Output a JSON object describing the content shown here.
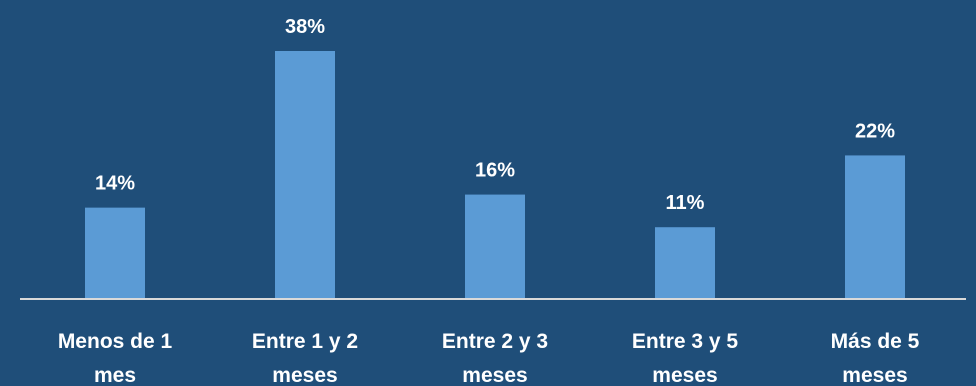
{
  "chart_data": {
    "type": "bar",
    "categories": [
      "Menos de 1 mes",
      "Entre 1 y 2 meses",
      "Entre 2 y 3 meses",
      "Entre 3 y 5 meses",
      "Más de 5 meses"
    ],
    "category_label_lines": [
      [
        "Menos de 1",
        "mes"
      ],
      [
        "Entre 1 y 2",
        "meses"
      ],
      [
        "Entre 2 y 3",
        "meses"
      ],
      [
        "Entre 3 y 5",
        "meses"
      ],
      [
        "Más de 5",
        "meses"
      ]
    ],
    "values": [
      14,
      38,
      16,
      11,
      22
    ],
    "value_labels": [
      "14%",
      "38%",
      "16%",
      "11%",
      "22%"
    ],
    "ylim": [
      0,
      38
    ],
    "grid": false,
    "legend": "none",
    "colors": {
      "background": "#1f4e79",
      "bar": "#5b9bd5",
      "text": "#ffffff",
      "axis": "#d9d9d9"
    }
  }
}
